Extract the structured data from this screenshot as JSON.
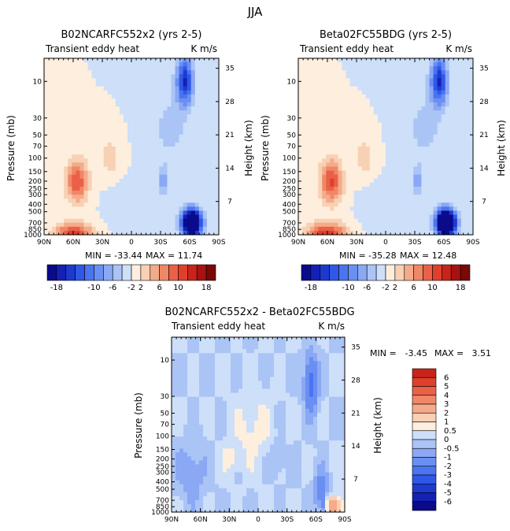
{
  "figure": {
    "title": "JJA",
    "diff_min_label": "MIN =",
    "diff_max_label": "MAX ="
  },
  "colors": {
    "neg": [
      "#0a0a8c",
      "#1520b4",
      "#1c3ad2",
      "#2f58e8",
      "#4a74f0",
      "#6a8ff2",
      "#8aa8f4",
      "#abc4f6",
      "#cddff9"
    ],
    "pos": [
      "#fdeedd",
      "#f8d0b4",
      "#f4ab8a",
      "#f08767",
      "#ea6147",
      "#e0402b",
      "#c8241a",
      "#a81212",
      "#7a0808"
    ]
  },
  "chart_data": [
    {
      "type": "heatmap",
      "title": "B02NCARFC552x2 (yrs 2-5)",
      "subtitle_left": "Transient eddy heat",
      "subtitle_right": "K m/s",
      "xlabel": "",
      "ylabel": "Pressure (mb)",
      "ylabel_right": "Height (km)",
      "x_ticks": [
        "90N",
        "60N",
        "30N",
        "0",
        "30S",
        "60S",
        "90S"
      ],
      "y_ticks": [
        "10",
        "30",
        "50",
        "70",
        "100",
        "150",
        "200",
        "250",
        "300",
        "400",
        "500",
        "700",
        "850",
        "1000"
      ],
      "y_ticks_right": [
        "35",
        "28",
        "21",
        "14",
        "7"
      ],
      "min": -33.44,
      "max": 11.74,
      "min_text": "MIN = -33.44",
      "max_text": "MAX = 11.74",
      "features": [
        {
          "lat": 56,
          "p": 200,
          "value": 10,
          "sx": 8,
          "sy": 0.45
        },
        {
          "lat": 60,
          "p": 1000,
          "value": 11,
          "sx": 14,
          "sy": 0.25
        },
        {
          "lat": 22,
          "p": 100,
          "value": 4,
          "sx": 6,
          "sy": 0.35
        },
        {
          "lat": -33,
          "p": 200,
          "value": -6,
          "sx": 3,
          "sy": 0.3
        },
        {
          "lat": -62,
          "p": 700,
          "value": -30,
          "sx": 7,
          "sy": 0.28
        },
        {
          "lat": -55,
          "p": 10,
          "value": -14,
          "sx": 6,
          "sy": 0.5
        },
        {
          "lat": -40,
          "p": 40,
          "value": -3,
          "sx": 12,
          "sy": 0.7
        },
        {
          "lat": 5,
          "p": 500,
          "value": -2,
          "sx": 12,
          "sy": 0.4
        }
      ]
    },
    {
      "type": "heatmap",
      "title": "Beta02FC55BDG (yrs 2-5)",
      "subtitle_left": "Transient eddy heat",
      "subtitle_right": "K m/s",
      "xlabel": "",
      "ylabel": "Pressure (mb)",
      "ylabel_right": "Height (km)",
      "x_ticks": [
        "90N",
        "60N",
        "30N",
        "0",
        "30S",
        "60S",
        "90S"
      ],
      "y_ticks": [
        "10",
        "30",
        "50",
        "70",
        "100",
        "150",
        "200",
        "250",
        "300",
        "400",
        "500",
        "700",
        "850",
        "1000"
      ],
      "y_ticks_right": [
        "35",
        "28",
        "21",
        "14",
        "7"
      ],
      "min": -35.28,
      "max": 12.48,
      "min_text": "MIN = -35.28",
      "max_text": "MAX = 12.48",
      "features": [
        {
          "lat": 56,
          "p": 200,
          "value": 10.5,
          "sx": 8,
          "sy": 0.45
        },
        {
          "lat": 60,
          "p": 1000,
          "value": 12,
          "sx": 14,
          "sy": 0.25
        },
        {
          "lat": 22,
          "p": 100,
          "value": 4,
          "sx": 6,
          "sy": 0.35
        },
        {
          "lat": -33,
          "p": 200,
          "value": -6,
          "sx": 3,
          "sy": 0.3
        },
        {
          "lat": -62,
          "p": 700,
          "value": -32,
          "sx": 7,
          "sy": 0.28
        },
        {
          "lat": -55,
          "p": 10,
          "value": -14,
          "sx": 6,
          "sy": 0.5
        },
        {
          "lat": -40,
          "p": 40,
          "value": -3,
          "sx": 12,
          "sy": 0.7
        },
        {
          "lat": 5,
          "p": 500,
          "value": -2,
          "sx": 12,
          "sy": 0.4
        }
      ]
    },
    {
      "type": "heatmap",
      "title": "B02NCARFC552x2 - Beta02FC55BDG",
      "subtitle_left": "Transient eddy heat",
      "subtitle_right": "K m/s",
      "xlabel": "",
      "ylabel": "Pressure (mb)",
      "ylabel_right": "Height (km)",
      "x_ticks": [
        "90N",
        "60N",
        "30N",
        "0",
        "30S",
        "60S",
        "90S"
      ],
      "y_ticks": [
        "10",
        "30",
        "50",
        "70",
        "100",
        "150",
        "200",
        "250",
        "300",
        "400",
        "500",
        "700",
        "850",
        "1000"
      ],
      "y_ticks_right": [
        "35",
        "28",
        "21",
        "14",
        "7"
      ],
      "min": -3.45,
      "max": 3.51,
      "min_value": "-3.45",
      "max_value": "3.51",
      "features": [
        {
          "lat": -78,
          "p": 850,
          "value": 3.2,
          "sx": 6,
          "sy": 0.2
        },
        {
          "lat": -55,
          "p": 20,
          "value": -2.5,
          "sx": 5,
          "sy": 0.6
        },
        {
          "lat": -65,
          "p": 500,
          "value": -1.5,
          "sx": 5,
          "sy": 0.4
        },
        {
          "lat": 70,
          "p": 300,
          "value": -1,
          "sx": 10,
          "sy": 0.6
        },
        {
          "lat": 28,
          "p": 200,
          "value": 0.8,
          "sx": 6,
          "sy": 0.3
        },
        {
          "lat": 5,
          "p": 80,
          "value": 0.7,
          "sx": 15,
          "sy": 0.8
        },
        {
          "lat": -20,
          "p": 200,
          "value": -0.8,
          "sx": 5,
          "sy": 0.35
        },
        {
          "lat": -68,
          "p": 850,
          "value": -1.6,
          "sx": 3,
          "sy": 0.2
        }
      ]
    }
  ],
  "colorbars": [
    {
      "levels": [
        -18,
        -16,
        -14,
        -12,
        -10,
        -8,
        -6,
        -4,
        -2,
        0,
        2,
        4,
        6,
        8,
        10,
        12,
        14,
        16,
        18
      ],
      "labels": [
        "-18",
        "-10",
        "-6",
        "-2",
        "2",
        "6",
        "10",
        "18"
      ]
    },
    {
      "levels": [
        -18,
        -16,
        -14,
        -12,
        -10,
        -8,
        -6,
        -4,
        -2,
        0,
        2,
        4,
        6,
        8,
        10,
        12,
        14,
        16,
        18
      ],
      "labels": [
        "-18",
        "-10",
        "-6",
        "-2",
        "2",
        "6",
        "10",
        "18"
      ]
    },
    {
      "levels": [
        -6,
        -5,
        -4,
        -3,
        -2,
        -1,
        -0.5,
        0,
        0.5,
        1,
        2,
        3,
        4,
        5,
        6
      ],
      "labels": [
        "6",
        "5",
        "4",
        "3",
        "2",
        "1",
        "0.5",
        "0",
        "-0.5",
        "-1",
        "-2",
        "-3",
        "-4",
        "-5",
        "-6"
      ]
    }
  ]
}
